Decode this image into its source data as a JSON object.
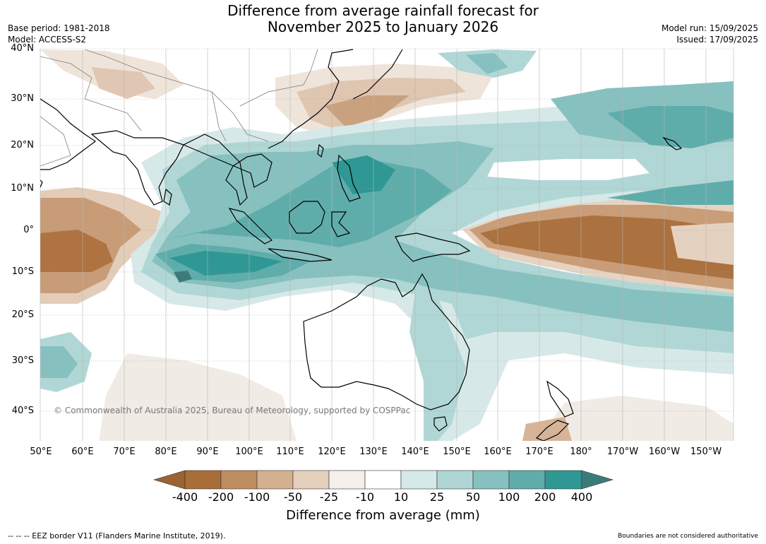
{
  "title_line1": "Difference from average rainfall forecast for",
  "title_line2": "November 2025 to January 2026",
  "base_period": "Base period: 1981-2018",
  "model": "Model: ACCESS-S2",
  "model_run": "Model run: 15/09/2025",
  "issued": "Issued: 17/09/2025",
  "latitudes": [
    "40°N",
    "30°N",
    "20°N",
    "10°N",
    "0°",
    "10°S",
    "20°S",
    "30°S",
    "40°S"
  ],
  "longitudes": [
    "50°E",
    "60°E",
    "70°E",
    "80°E",
    "90°E",
    "100°E",
    "110°E",
    "120°E",
    "130°E",
    "140°E",
    "150°E",
    "160°E",
    "170°E",
    "180°",
    "170°W",
    "160°W",
    "150°W"
  ],
  "copyright": "© Commonwealth of Australia 2025, Bureau of Meteorology, supported by COSPPac",
  "colorbar": {
    "labels": [
      "-400",
      "-200",
      "-100",
      "-50",
      "-25",
      "-10",
      "10",
      "25",
      "50",
      "100",
      "200",
      "400"
    ],
    "colors": [
      "#9b6232",
      "#a96d38",
      "#bf8d62",
      "#d3b08f",
      "#e5cfbd",
      "#f4efea",
      "#ffffff",
      "#d5e9e8",
      "#afd6d4",
      "#86c1bf",
      "#5fadab",
      "#2f9794",
      "#3a7c79"
    ],
    "title": "Difference from average (mm)"
  },
  "footer_left": "--  --  -- EEZ border V11 (Flanders Marine Institute, 2019).",
  "footer_right": "Boundaries are not considered authoritative"
}
